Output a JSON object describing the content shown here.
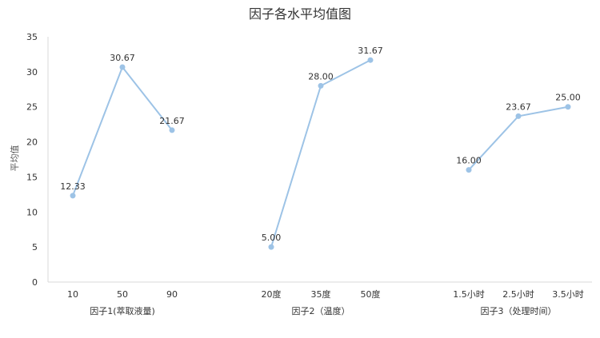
{
  "chart_data": {
    "type": "line",
    "title": "因子各水平均值图",
    "ylabel": "平均值",
    "ylim": [
      0,
      35
    ],
    "yticks": [
      0,
      5,
      10,
      15,
      20,
      25,
      30,
      35
    ],
    "grid": false,
    "groups": [
      {
        "label": "因子1(萃取液量)",
        "categories": [
          "10",
          "50",
          "90"
        ],
        "values": [
          12.33,
          30.67,
          21.67
        ],
        "value_labels": [
          "12.33",
          "30.67",
          "21.67"
        ]
      },
      {
        "label": "因子2（温度）",
        "categories": [
          "20度",
          "35度",
          "50度"
        ],
        "values": [
          5.0,
          28.0,
          31.67
        ],
        "value_labels": [
          "5.00",
          "28.00",
          "31.67"
        ]
      },
      {
        "label": "因子3（处理时间）",
        "categories": [
          "1.5小时",
          "2.5小时",
          "3.5小时"
        ],
        "values": [
          16.0,
          23.67,
          25.0
        ],
        "value_labels": [
          "16.00",
          "23.67",
          "25.00"
        ]
      }
    ],
    "colors": {
      "line": "#9dc3e6",
      "marker": "#9dc3e6",
      "axis": "#d9d9d9"
    }
  }
}
